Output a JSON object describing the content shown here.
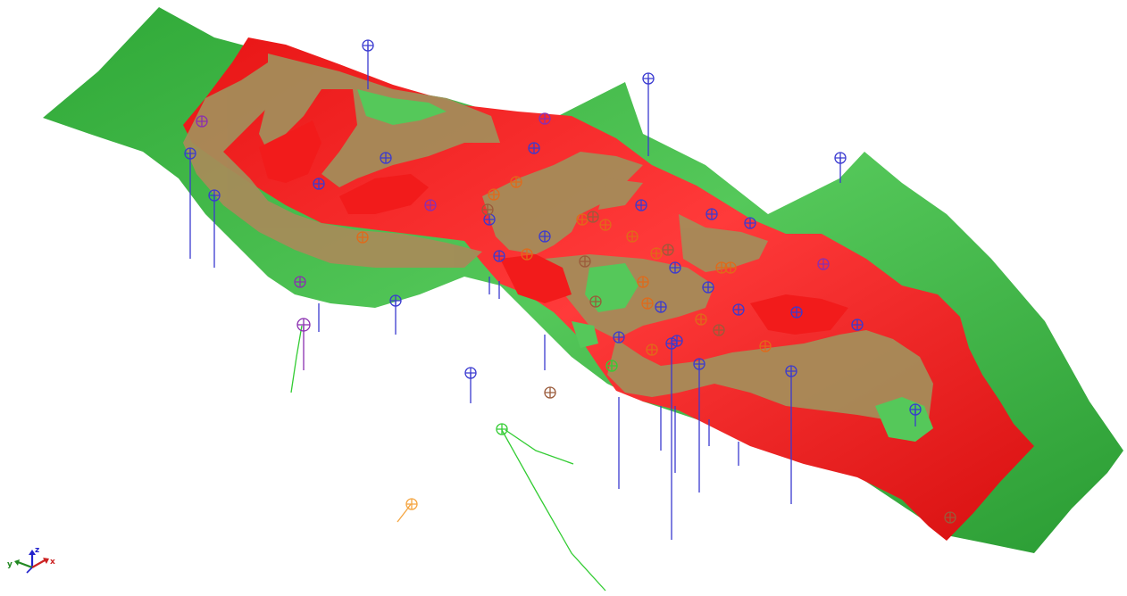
{
  "view": {
    "background": "#ffffff",
    "surfaces": [
      {
        "name": "lower-surface",
        "color": "#3cb043"
      },
      {
        "name": "upper-surface",
        "color": "#f21b1b"
      },
      {
        "name": "overlap",
        "color": "#a58c59"
      }
    ],
    "well_colors": {
      "blue": "#3a3ad0",
      "purple": "#8a2fb0",
      "orange": "#e06a1a",
      "brown": "#9a5a3a",
      "green": "#33cc33",
      "light-orange": "#f5a540"
    },
    "axis_triad": {
      "x_label": "x",
      "y_label": "y",
      "z_label": "z",
      "x_color": "#cc2222",
      "y_color": "#228822",
      "z_color": "#2222cc"
    }
  }
}
